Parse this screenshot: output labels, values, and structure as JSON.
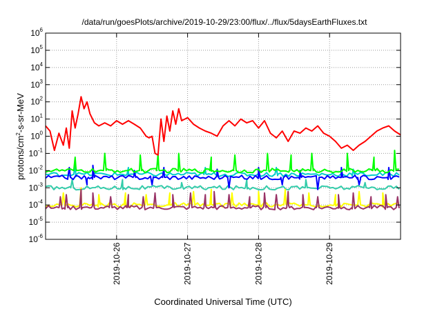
{
  "chart_data": {
    "type": "line",
    "title": "/data/run/goesPlots/archive/2019-10-29/23:00/flux/../flux/5daysEarthFluxes.txt",
    "xlabel": "Coordinated Universal Time (UTC)",
    "ylabel": {
      "base": "protons/cm",
      "sup": "2",
      "rest": "-s-sr-MeV"
    },
    "y_scale": "log",
    "ylim": [
      1e-06,
      1000000.0
    ],
    "y_ticks": [
      {
        "value": 1e-06,
        "base": "10",
        "exp": "-6"
      },
      {
        "value": 1e-05,
        "base": "10",
        "exp": "-5"
      },
      {
        "value": 0.0001,
        "base": "10",
        "exp": "-4"
      },
      {
        "value": 0.001,
        "base": "10",
        "exp": "-3"
      },
      {
        "value": 0.01,
        "base": "10",
        "exp": "-2"
      },
      {
        "value": 0.1,
        "base": "10",
        "exp": "-1"
      },
      {
        "value": 1,
        "base": "10",
        "exp": "0"
      },
      {
        "value": 10,
        "base": "10",
        "exp": "1"
      },
      {
        "value": 100,
        "base": "10",
        "exp": "2"
      },
      {
        "value": 1000,
        "base": "10",
        "exp": "3"
      },
      {
        "value": 10000,
        "base": "10",
        "exp": "4"
      },
      {
        "value": 100000,
        "base": "10",
        "exp": "5"
      },
      {
        "value": 1000000,
        "base": "10",
        "exp": "6"
      }
    ],
    "xlim": [
      "2019-10-25T00:00",
      "2019-10-30T00:00"
    ],
    "x_ticks": [
      "2019-10-26",
      "2019-10-27",
      "2019-10-28",
      "2019-10-29"
    ],
    "grid": true,
    "series": [
      {
        "color": "#ff0000",
        "points": [
          [
            "2019-10-25T00:00",
            4
          ],
          [
            "2019-10-25T01:30",
            2
          ],
          [
            "2019-10-25T03:00",
            0.15
          ],
          [
            "2019-10-25T04:30",
            1.5
          ],
          [
            "2019-10-25T06:00",
            0.3
          ],
          [
            "2019-10-25T07:00",
            3
          ],
          [
            "2019-10-25T08:00",
            0.2
          ],
          [
            "2019-10-25T09:00",
            30
          ],
          [
            "2019-10-25T10:00",
            3
          ],
          [
            "2019-10-25T11:00",
            20
          ],
          [
            "2019-10-25T12:00",
            200
          ],
          [
            "2019-10-25T13:00",
            40
          ],
          [
            "2019-10-25T14:00",
            100
          ],
          [
            "2019-10-25T15:00",
            20
          ],
          [
            "2019-10-25T16:30",
            6
          ],
          [
            "2019-10-25T18:00",
            4
          ],
          [
            "2019-10-25T20:00",
            6
          ],
          [
            "2019-10-25T22:00",
            4
          ],
          [
            "2019-10-26T00:00",
            8
          ],
          [
            "2019-10-26T02:00",
            5
          ],
          [
            "2019-10-26T04:00",
            8
          ],
          [
            "2019-10-26T06:00",
            5
          ],
          [
            "2019-10-26T08:00",
            3
          ],
          [
            "2019-10-26T10:00",
            1
          ],
          [
            "2019-10-26T11:00",
            0.8
          ],
          [
            "2019-10-26T12:00",
            1
          ],
          [
            "2019-10-26T13:00",
            0.1
          ],
          [
            "2019-10-26T14:00",
            0.08
          ],
          [
            "2019-10-26T15:00",
            10
          ],
          [
            "2019-10-26T16:00",
            0.5
          ],
          [
            "2019-10-26T17:00",
            15
          ],
          [
            "2019-10-26T18:00",
            2
          ],
          [
            "2019-10-26T19:00",
            30
          ],
          [
            "2019-10-26T20:00",
            5
          ],
          [
            "2019-10-26T21:00",
            40
          ],
          [
            "2019-10-26T22:00",
            8
          ],
          [
            "2019-10-27T00:00",
            12
          ],
          [
            "2019-10-27T02:00",
            5
          ],
          [
            "2019-10-27T04:00",
            3
          ],
          [
            "2019-10-27T06:00",
            2
          ],
          [
            "2019-10-27T08:00",
            1.5
          ],
          [
            "2019-10-27T10:00",
            1
          ],
          [
            "2019-10-27T12:00",
            4
          ],
          [
            "2019-10-27T14:00",
            8
          ],
          [
            "2019-10-27T16:00",
            4
          ],
          [
            "2019-10-27T18:00",
            10
          ],
          [
            "2019-10-27T20:00",
            6
          ],
          [
            "2019-10-27T22:00",
            8
          ],
          [
            "2019-10-28T00:00",
            3
          ],
          [
            "2019-10-28T02:00",
            8
          ],
          [
            "2019-10-28T04:00",
            1.5
          ],
          [
            "2019-10-28T06:00",
            0.8
          ],
          [
            "2019-10-28T08:00",
            2
          ],
          [
            "2019-10-28T10:00",
            0.5
          ],
          [
            "2019-10-28T12:00",
            2
          ],
          [
            "2019-10-28T14:00",
            1.5
          ],
          [
            "2019-10-28T16:00",
            3
          ],
          [
            "2019-10-28T18:00",
            2
          ],
          [
            "2019-10-28T20:00",
            4
          ],
          [
            "2019-10-28T22:00",
            1.5
          ],
          [
            "2019-10-29T00:00",
            1
          ],
          [
            "2019-10-29T02:00",
            0.5
          ],
          [
            "2019-10-29T04:00",
            0.2
          ],
          [
            "2019-10-29T06:00",
            0.3
          ],
          [
            "2019-10-29T08:00",
            0.15
          ],
          [
            "2019-10-29T10:00",
            0.3
          ],
          [
            "2019-10-29T12:00",
            0.5
          ],
          [
            "2019-10-29T14:00",
            1
          ],
          [
            "2019-10-29T16:00",
            2
          ],
          [
            "2019-10-29T18:00",
            3
          ],
          [
            "2019-10-29T20:00",
            4
          ],
          [
            "2019-10-29T22:00",
            2
          ],
          [
            "2019-10-30T00:00",
            1.2
          ]
        ]
      },
      {
        "color": "#00ff00",
        "base": 0.01,
        "spikes": [
          [
            "2019-10-25T10:00",
            0.06
          ],
          [
            "2019-10-25T20:00",
            0.1
          ],
          [
            "2019-10-26T08:00",
            0.08
          ],
          [
            "2019-10-26T14:00",
            0.1
          ],
          [
            "2019-10-26T21:00",
            0.1
          ],
          [
            "2019-10-27T08:00",
            0.06
          ],
          [
            "2019-10-27T16:00",
            0.08
          ],
          [
            "2019-10-28T03:00",
            0.1
          ],
          [
            "2019-10-28T11:00",
            0.08
          ],
          [
            "2019-10-28T18:00",
            0.1
          ],
          [
            "2019-10-29T06:00",
            0.1
          ],
          [
            "2019-10-29T15:00",
            0.06
          ],
          [
            "2019-10-29T22:00",
            0.15
          ]
        ]
      },
      {
        "color": "#0000ff",
        "base": 0.004,
        "spikes": [
          [
            "2019-10-25T08:00",
            0.015
          ],
          [
            "2019-10-25T16:00",
            0.02
          ],
          [
            "2019-10-26T06:00",
            0.01
          ],
          [
            "2019-10-26T16:00",
            0.015
          ],
          [
            "2019-10-27T10:00",
            0.012
          ],
          [
            "2019-10-28T00:00",
            0.015
          ],
          [
            "2019-10-28T14:00",
            0.01
          ],
          [
            "2019-10-29T04:00",
            0.015
          ],
          [
            "2019-10-29T20:00",
            0.015
          ]
        ],
        "dips": [
          [
            "2019-10-25T14:00",
            0.0015
          ],
          [
            "2019-10-26T12:00",
            0.0015
          ],
          [
            "2019-10-27T14:00",
            0.001
          ],
          [
            "2019-10-28T08:00",
            0.0015
          ],
          [
            "2019-10-28T20:00",
            0.0008
          ],
          [
            "2019-10-29T10:00",
            0.0015
          ]
        ]
      },
      {
        "color": "#00cccc",
        "base": 0.006,
        "spikes": [
          [
            "2019-10-25T10:00",
            0.02
          ],
          [
            "2019-10-26T04:00",
            0.015
          ],
          [
            "2019-10-27T06:00",
            0.015
          ],
          [
            "2019-10-28T06:00",
            0.015
          ],
          [
            "2019-10-29T08:00",
            0.012
          ]
        ]
      },
      {
        "color": "#33ccaa",
        "base": 0.001,
        "spikes": [
          [
            "2019-10-25T09:00",
            0.003
          ],
          [
            "2019-10-26T02:00",
            0.003
          ],
          [
            "2019-10-26T22:00",
            0.002
          ],
          [
            "2019-10-27T20:00",
            0.003
          ],
          [
            "2019-10-28T16:00",
            0.003
          ],
          [
            "2019-10-29T12:00",
            0.002
          ]
        ]
      },
      {
        "color": "#ffff00",
        "base": 0.0001,
        "spikes": [
          [
            "2019-10-25T06:00",
            0.0005
          ],
          [
            "2019-10-25T12:00",
            0.001
          ],
          [
            "2019-10-25T18:00",
            0.0004
          ],
          [
            "2019-10-26T03:00",
            0.0005
          ],
          [
            "2019-10-26T10:00",
            0.0004
          ],
          [
            "2019-10-26T18:00",
            0.0005
          ],
          [
            "2019-10-27T02:00",
            0.0006
          ],
          [
            "2019-10-27T08:00",
            0.0008
          ],
          [
            "2019-10-27T15:00",
            0.0005
          ],
          [
            "2019-10-28T00:00",
            0.0006
          ],
          [
            "2019-10-28T09:00",
            0.0008
          ],
          [
            "2019-10-28T17:00",
            0.0005
          ],
          [
            "2019-10-29T02:00",
            0.0004
          ],
          [
            "2019-10-29T10:00",
            0.0006
          ],
          [
            "2019-10-29T18:00",
            0.0005
          ]
        ]
      },
      {
        "color": "#993366",
        "base": 7e-05,
        "spikes": [
          [
            "2019-10-25T05:00",
            0.0003
          ],
          [
            "2019-10-25T07:00",
            0.0004
          ],
          [
            "2019-10-25T12:00",
            0.0008
          ],
          [
            "2019-10-25T16:00",
            0.0005
          ],
          [
            "2019-10-25T22:00",
            0.0003
          ],
          [
            "2019-10-26T04:00",
            0.0004
          ],
          [
            "2019-10-26T09:00",
            0.0003
          ],
          [
            "2019-10-26T13:00",
            0.0005
          ],
          [
            "2019-10-26T19:00",
            0.0004
          ],
          [
            "2019-10-27T01:00",
            0.0005
          ],
          [
            "2019-10-27T06:00",
            0.0004
          ],
          [
            "2019-10-27T09:00",
            0.0006
          ],
          [
            "2019-10-27T14:00",
            0.0004
          ],
          [
            "2019-10-27T21:00",
            0.0003
          ],
          [
            "2019-10-28T02:00",
            0.0005
          ],
          [
            "2019-10-28T06:00",
            0.0004
          ],
          [
            "2019-10-28T10:00",
            0.0006
          ],
          [
            "2019-10-28T15:00",
            0.0004
          ],
          [
            "2019-10-28T20:00",
            0.0003
          ],
          [
            "2019-10-29T03:00",
            0.0004
          ],
          [
            "2019-10-29T08:00",
            0.0005
          ],
          [
            "2019-10-29T14:00",
            0.0003
          ],
          [
            "2019-10-29T19:00",
            0.0004
          ],
          [
            "2019-10-29T23:00",
            0.0003
          ]
        ]
      }
    ]
  }
}
